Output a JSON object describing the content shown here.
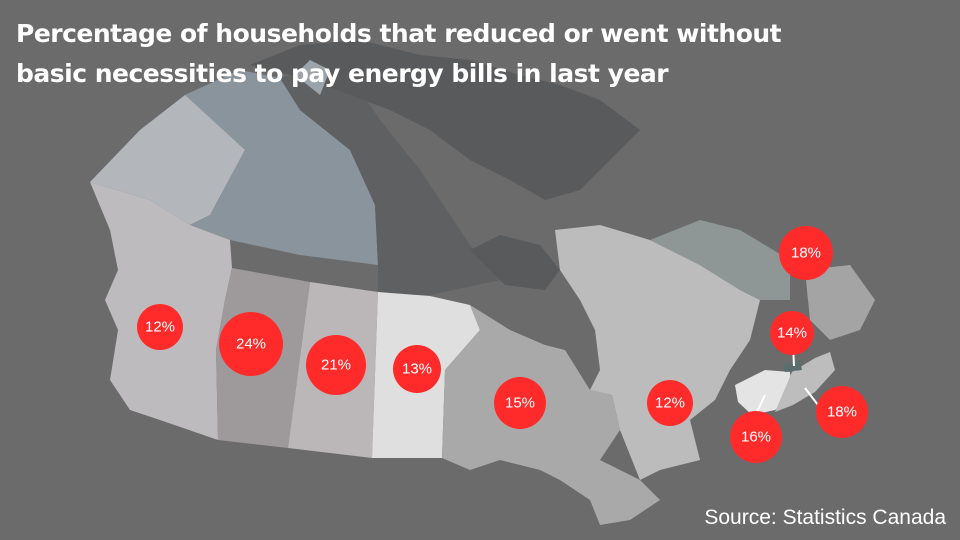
{
  "title": "Percentage of households that reduced or went without basic necessities to pay energy bills in last year",
  "source": "Source: Statistics Canada",
  "colors": {
    "background": "#6b6b6b",
    "bubble": "#ff2b2b",
    "text": "#ffffff"
  },
  "provinces": [
    {
      "id": "british-columbia",
      "value": "12%"
    },
    {
      "id": "alberta",
      "value": "24%"
    },
    {
      "id": "saskatchewan",
      "value": "21%"
    },
    {
      "id": "manitoba",
      "value": "13%"
    },
    {
      "id": "ontario",
      "value": "15%"
    },
    {
      "id": "quebec",
      "value": "12%"
    },
    {
      "id": "newfoundland-and-labrador",
      "value": "18%"
    },
    {
      "id": "prince-edward-island",
      "value": "14%"
    },
    {
      "id": "nova-scotia",
      "value": "18%"
    },
    {
      "id": "new-brunswick",
      "value": "16%"
    }
  ]
}
